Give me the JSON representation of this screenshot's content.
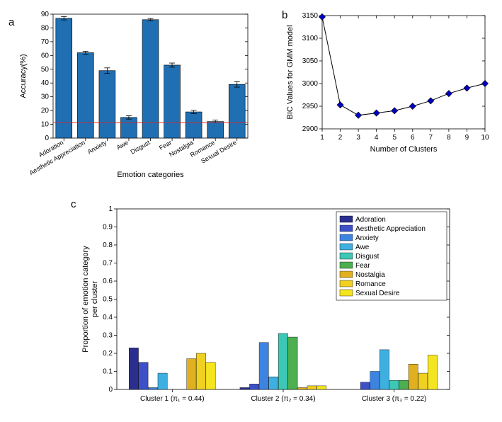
{
  "panelA": {
    "label": "a",
    "type": "bar",
    "title": "",
    "xlabel": "Emotion categories",
    "ylabel": "Accuracy(%)",
    "ylim": [
      0,
      90
    ],
    "ytick_step": 10,
    "categories": [
      "Adoration",
      "Aesthetic Appreciation",
      "Anxiety",
      "Awe",
      "Disgust",
      "Fear",
      "Nostalgia",
      "Romance",
      "Sexual Desire"
    ],
    "values": [
      87,
      62,
      49,
      15,
      86,
      53,
      19,
      12,
      39
    ],
    "errors": [
      1.2,
      1.0,
      2.0,
      1.2,
      0.8,
      1.5,
      1.2,
      1.0,
      2.0
    ],
    "bar_color": "#1f6fb2",
    "bar_edge": "#000000",
    "chance_line_y": 11,
    "chance_line_color": "#d62728",
    "background_color": "#ffffff",
    "label_fontsize": 11,
    "tick_fontsize": 9
  },
  "panelB": {
    "label": "b",
    "type": "line",
    "xlabel": "Number of Clusters",
    "ylabel": "BIC Values for GMM model",
    "xlim": [
      1,
      10
    ],
    "ylim": [
      2900,
      3150
    ],
    "ytick_step": 50,
    "x": [
      1,
      2,
      3,
      4,
      5,
      6,
      7,
      8,
      9,
      10
    ],
    "y": [
      3147,
      2953,
      2930,
      2935,
      2940,
      2950,
      2962,
      2978,
      2990,
      3000
    ],
    "line_color": "#000000",
    "marker_fill": "#0000cc",
    "marker_edge": "#000000",
    "marker": "diamond",
    "background_color": "#ffffff"
  },
  "panelC": {
    "label": "c",
    "type": "grouped-bar",
    "ylabel": "Proportion of emotion category\nper cluster",
    "ylim": [
      0,
      1
    ],
    "ytick_step": 0.1,
    "legend_items": [
      "Adoration",
      "Aesthetic Appreciation",
      "Anxiety",
      "Awe",
      "Disgust",
      "Fear",
      "Nostalgia",
      "Romance",
      "Sexual Desire"
    ],
    "colors": [
      "#2a2f8f",
      "#3c50c8",
      "#3d84e0",
      "#3eb0e0",
      "#3cc8b4",
      "#4caf50",
      "#9ccc3c",
      "#e0b020",
      "#f0d020",
      "#f5e520"
    ],
    "series_colors": [
      "#2a2f8f",
      "#3c50c8",
      "#3d84e0",
      "#3eb0e0",
      "#3cc8b4",
      "#4caf50",
      "#e0b020",
      "#f0d020",
      "#f5e520"
    ],
    "clusters": [
      {
        "label": "Cluster 1 (π₁ = 0.44)",
        "values": [
          0.23,
          0.15,
          0.01,
          0.09,
          0.0,
          0.0,
          0.17,
          0.2,
          0.15
        ]
      },
      {
        "label": "Cluster 2 (π₂ = 0.34)",
        "values": [
          0.01,
          0.03,
          0.26,
          0.07,
          0.31,
          0.29,
          0.01,
          0.02,
          0.02
        ]
      },
      {
        "label": "Cluster 3 (π₃ = 0.22)",
        "values": [
          0.0,
          0.04,
          0.1,
          0.22,
          0.05,
          0.05,
          0.14,
          0.09,
          0.19
        ]
      }
    ],
    "background_color": "#ffffff"
  }
}
